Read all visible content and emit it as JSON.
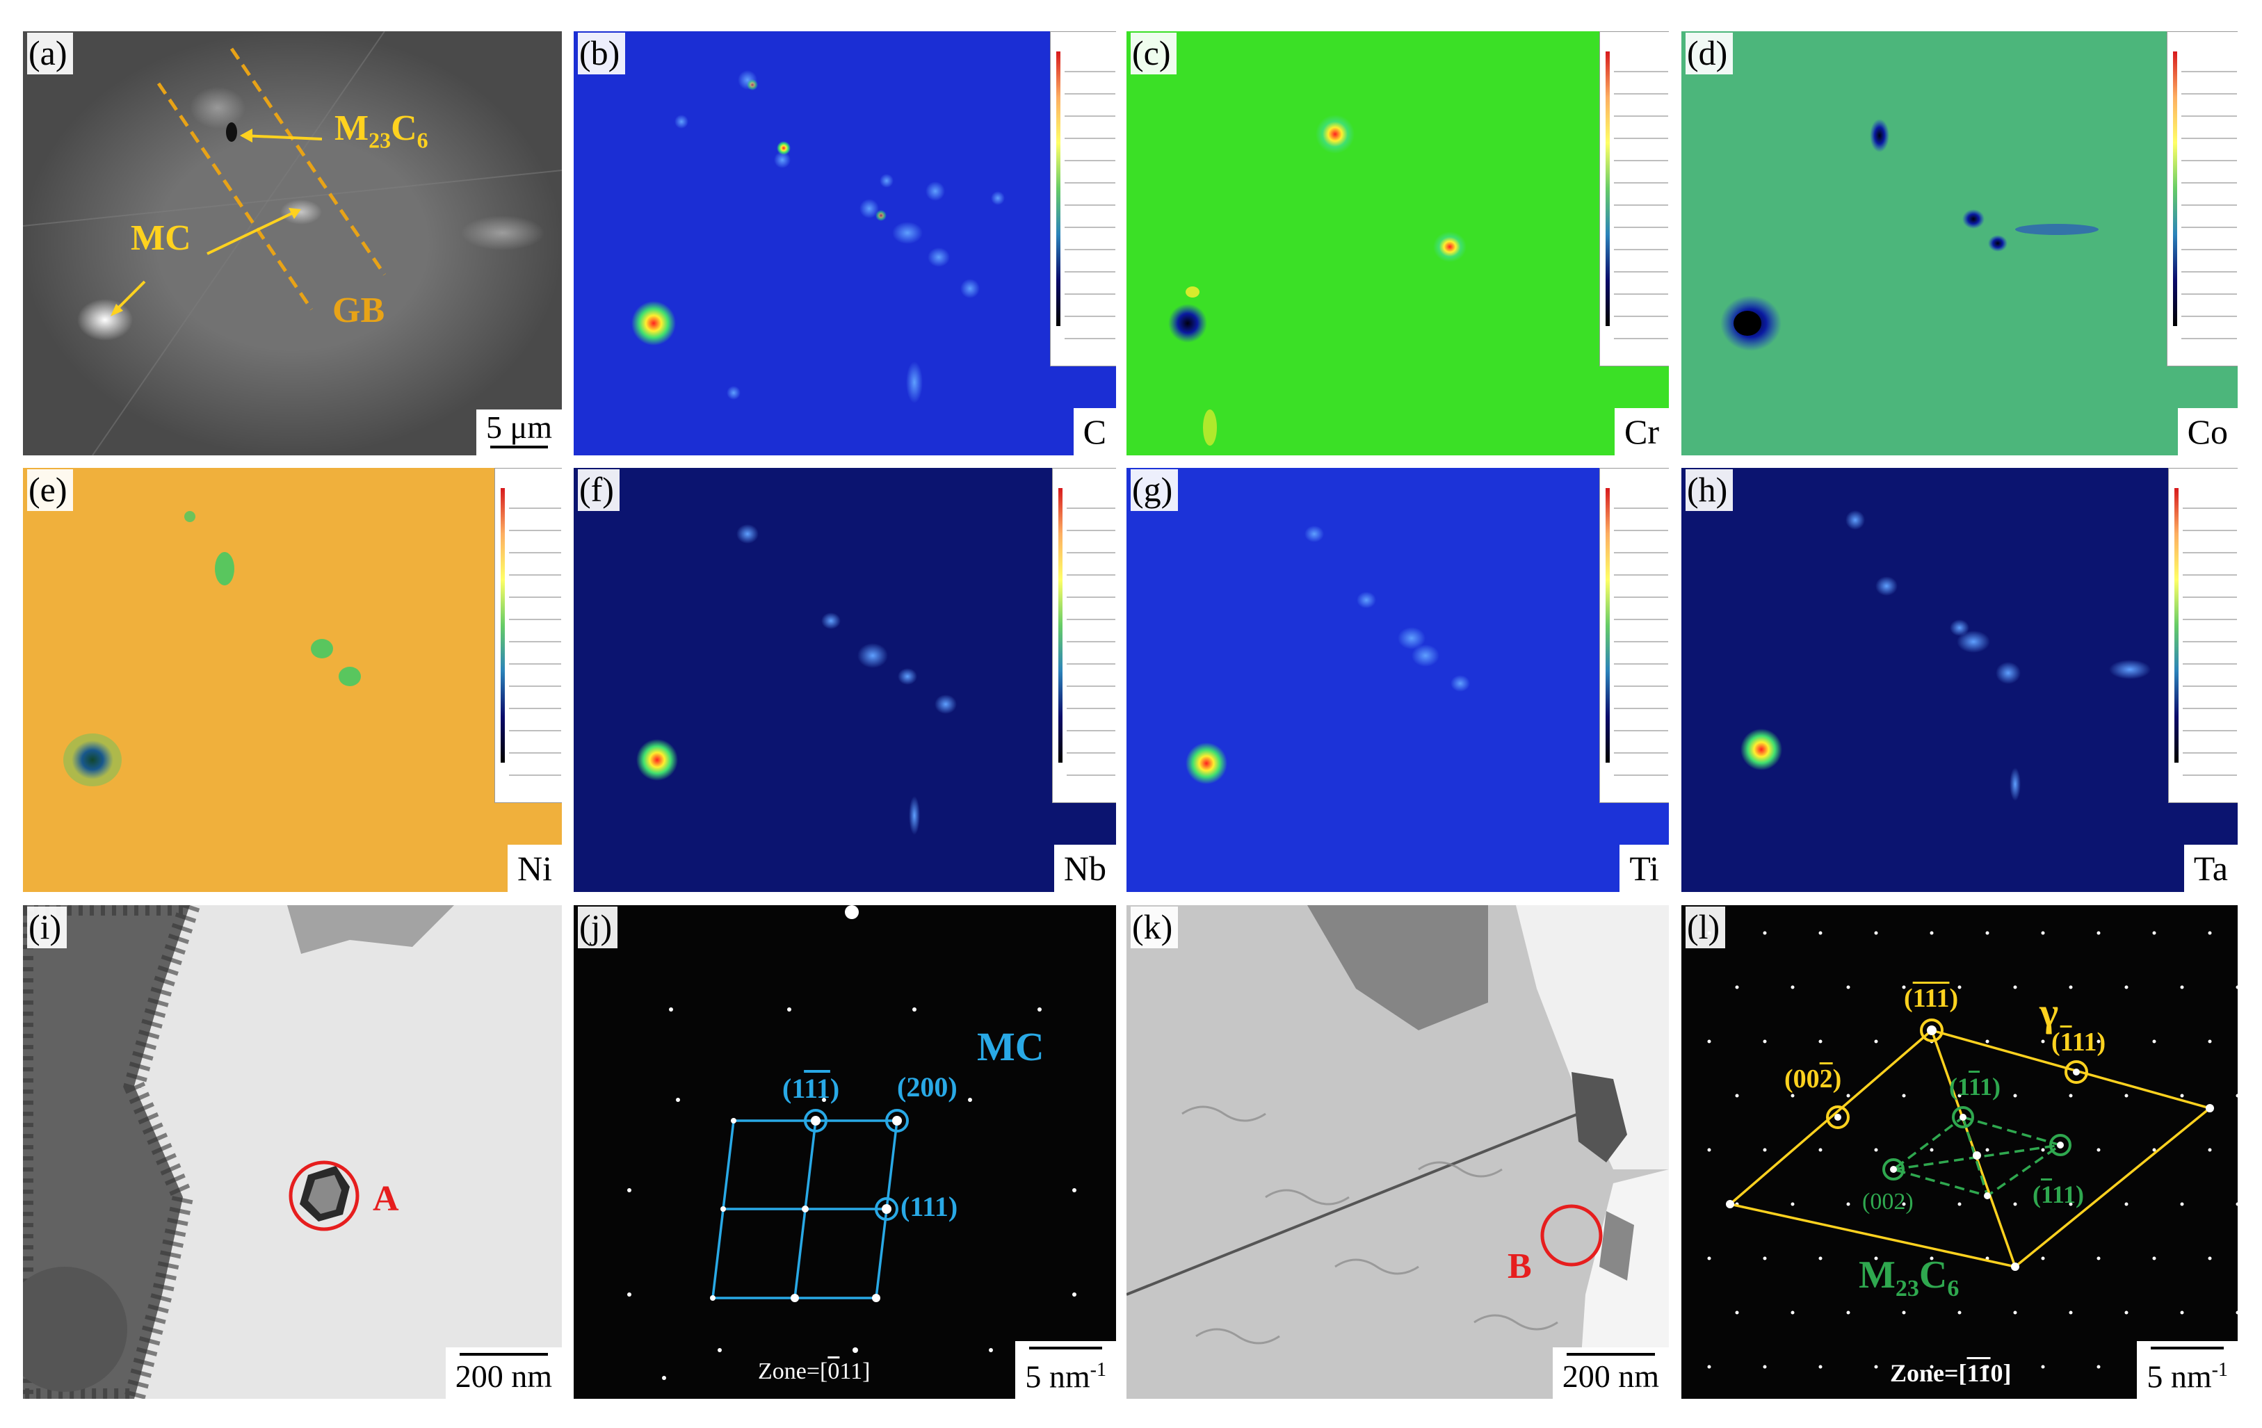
{
  "panels": {
    "a": {
      "label": "(a)",
      "annotations": {
        "m23c6": "M",
        "m23c6_sub1": "23",
        "m23c6_c": "C",
        "m23c6_sub2": "6",
        "mc": "MC",
        "gb": "GB"
      },
      "scale": "5 μm"
    },
    "b": {
      "label": "(b)",
      "element": "C"
    },
    "c": {
      "label": "(c)",
      "element": "Cr"
    },
    "d": {
      "label": "(d)",
      "element": "Co"
    },
    "e": {
      "label": "(e)",
      "element": "Ni"
    },
    "f": {
      "label": "(f)",
      "element": "Nb"
    },
    "g": {
      "label": "(g)",
      "element": "Ti"
    },
    "h": {
      "label": "(h)",
      "element": "Ta"
    },
    "i": {
      "label": "(i)",
      "marker": "A",
      "scale": "200 nm"
    },
    "j": {
      "label": "(j)",
      "phase": "MC",
      "spots": {
        "s1_open": "(1",
        "s1_bar": "11",
        "s1_close": ")",
        "s2": "(200)",
        "s3": "(111)"
      },
      "zone_prefix": "Zone=[",
      "zone_bar": "0",
      "zone_rest": "11]",
      "scale": "5  nm",
      "scale_exp": "-1"
    },
    "k": {
      "label": "(k)",
      "marker": "B",
      "scale": "200 nm"
    },
    "l": {
      "label": "(l)",
      "phase_gamma": "γ",
      "gamma_spots": {
        "g1_open": "(",
        "g1_bar": "111",
        "g1_close": ")",
        "g2_open": "(",
        "g2_bar": "1",
        "g2_rest": "11)",
        "g3_open": "(00",
        "g3_bar": "2",
        "g3_close": ")"
      },
      "m_spots": {
        "m1_open": "(1",
        "m1_bar": "1",
        "m1_rest": "1)",
        "m2": "(002)",
        "m3_open": "(",
        "m3_bar": "1",
        "m3_rest": "11)"
      },
      "m23c6": {
        "m": "M",
        "sub1": "23",
        "c": "C",
        "sub2": "6"
      },
      "zone_prefix": "Zone=[",
      "zone_bar": "11",
      "zone_rest": "0]",
      "scale": "5  nm",
      "scale_exp": "-1"
    }
  },
  "colors": {
    "yellow": "#ffd21f",
    "cyan": "#29a9e6",
    "red": "#e61e1e",
    "green": "#2fa84f",
    "map_blue": "#1a2fd6",
    "map_green": "#33dd22",
    "map_orange": "#f2b43a",
    "map_navy": "#0a1266"
  }
}
